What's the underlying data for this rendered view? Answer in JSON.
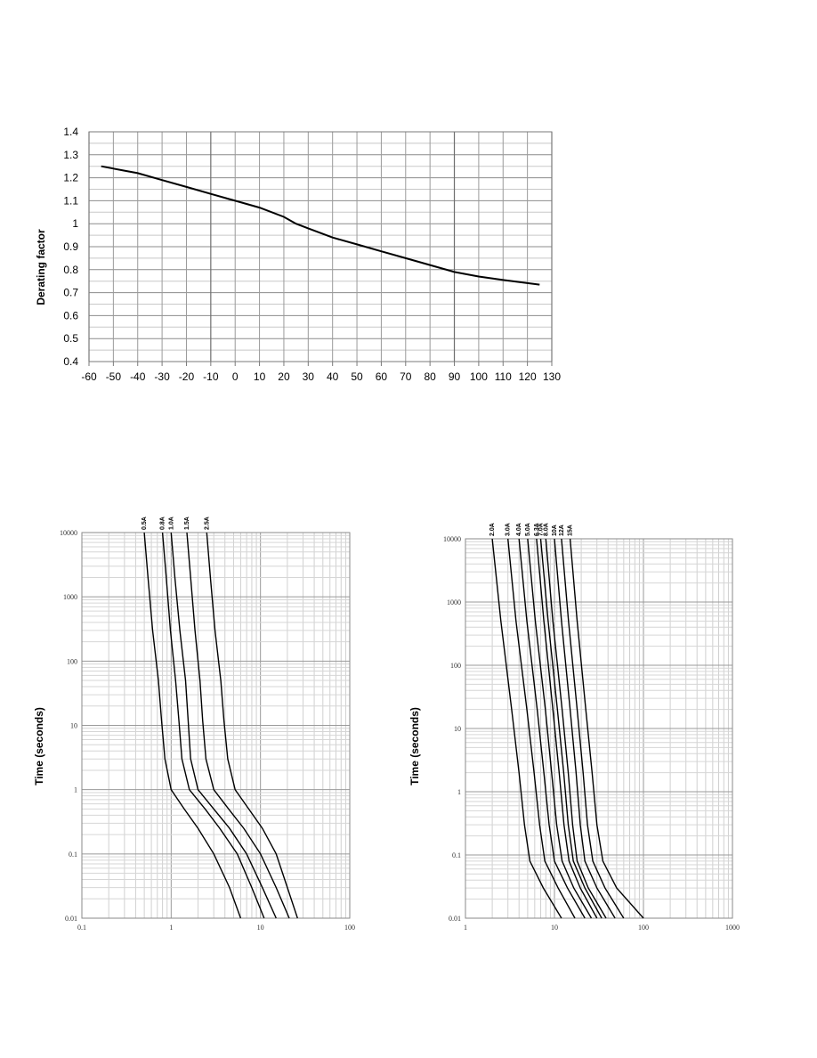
{
  "chart_data": [
    {
      "type": "line",
      "title": "",
      "xlabel": "",
      "ylabel": "Derating factor",
      "xlim": [
        -60,
        130
      ],
      "ylim": [
        0.4,
        1.4
      ],
      "x_ticks": [
        -60,
        -50,
        -40,
        -30,
        -20,
        -10,
        0,
        10,
        20,
        30,
        40,
        50,
        60,
        70,
        80,
        90,
        100,
        110,
        120,
        130
      ],
      "y_ticks": [
        0.4,
        0.5,
        0.6,
        0.7,
        0.8,
        0.9,
        1,
        1.1,
        1.2,
        1.3,
        1.4
      ],
      "x_tick_labels": [
        "-60",
        "-50",
        "-40",
        "-30",
        "-20",
        "-10",
        "0",
        "10",
        "20",
        "30",
        "40",
        "50",
        "60",
        "70",
        "80",
        "90",
        "100",
        "110",
        "120",
        "130"
      ],
      "y_tick_labels": [
        "0.4",
        "0.5",
        "0.6",
        "0.7",
        "0.8",
        "0.9",
        "1",
        "1.1",
        "1.2",
        "1.3",
        "1.4"
      ],
      "grid": true,
      "series": [
        {
          "x": [
            -55,
            -45,
            -40,
            -30,
            -20,
            -10,
            0,
            10,
            20,
            25,
            30,
            40,
            50,
            60,
            70,
            80,
            90,
            100,
            110,
            125
          ],
          "y": [
            1.25,
            1.23,
            1.22,
            1.19,
            1.16,
            1.13,
            1.1,
            1.07,
            1.03,
            1.0,
            0.98,
            0.94,
            0.91,
            0.88,
            0.85,
            0.82,
            0.79,
            0.77,
            0.755,
            0.735
          ]
        }
      ]
    },
    {
      "type": "line",
      "title": "",
      "xlabel": "",
      "ylabel": "Time (seconds)",
      "x_scale": "log",
      "y_scale": "log",
      "xlim": [
        0.1,
        100
      ],
      "ylim": [
        0.01,
        10000
      ],
      "x_tick_labels": [
        "0.1",
        "1",
        "10",
        "100"
      ],
      "y_tick_labels": [
        "0.01",
        "0.1",
        "1",
        "10",
        "100",
        "1000",
        "10000"
      ],
      "grid": true,
      "series": [
        {
          "name": "0.5A",
          "x": [
            0.5,
            0.55,
            0.62,
            0.72,
            0.78,
            0.85,
            1.0,
            1.4,
            2.0,
            3.0,
            4.5,
            6.0
          ],
          "y": [
            10000,
            2000,
            300,
            50,
            12,
            3,
            1,
            0.5,
            0.25,
            0.1,
            0.03,
            0.01
          ]
        },
        {
          "name": "0.8A",
          "x": [
            0.8,
            0.88,
            0.98,
            1.12,
            1.22,
            1.32,
            1.6,
            2.4,
            3.5,
            5.5,
            8.0,
            11.0
          ],
          "y": [
            10000,
            2000,
            300,
            50,
            12,
            3,
            1,
            0.5,
            0.25,
            0.1,
            0.03,
            0.01
          ]
        },
        {
          "name": "1.0A",
          "x": [
            1.0,
            1.1,
            1.25,
            1.45,
            1.55,
            1.65,
            2.0,
            3.0,
            4.5,
            7.0,
            10.5,
            15.0
          ],
          "y": [
            10000,
            2000,
            300,
            50,
            12,
            3,
            1,
            0.5,
            0.25,
            0.1,
            0.03,
            0.01
          ]
        },
        {
          "name": "1.5A",
          "x": [
            1.5,
            1.65,
            1.85,
            2.1,
            2.25,
            2.45,
            3.0,
            4.4,
            6.5,
            10.0,
            15.0,
            21.0
          ],
          "y": [
            10000,
            2000,
            300,
            50,
            12,
            3,
            1,
            0.5,
            0.25,
            0.1,
            0.03,
            0.01
          ]
        },
        {
          "name": "2.5A",
          "x": [
            2.5,
            2.75,
            3.1,
            3.6,
            3.9,
            4.3,
            5.2,
            7.4,
            10.5,
            15.0,
            20.0,
            26.0
          ],
          "y": [
            10000,
            2000,
            300,
            50,
            12,
            3,
            1,
            0.5,
            0.25,
            0.1,
            0.03,
            0.01
          ]
        }
      ]
    },
    {
      "type": "line",
      "title": "",
      "xlabel": "",
      "ylabel": "Time (seconds)",
      "x_scale": "log",
      "y_scale": "log",
      "xlim": [
        1,
        1000
      ],
      "ylim": [
        0.01,
        10000
      ],
      "x_tick_labels": [
        "1",
        "10",
        "100",
        "1000"
      ],
      "y_tick_labels": [
        "0.01",
        "0.1",
        "1",
        "10",
        "100",
        "1000",
        "10000"
      ],
      "grid": true,
      "series": [
        {
          "name": "2.0A",
          "x": [
            2.0,
            2.5,
            3.3,
            4.0,
            4.6,
            5.3,
            7.5,
            12.0
          ],
          "y": [
            10000,
            500,
            20,
            2,
            0.3,
            0.08,
            0.03,
            0.01
          ]
        },
        {
          "name": "3.0A",
          "x": [
            3.0,
            3.7,
            4.9,
            5.9,
            6.8,
            7.8,
            11.0,
            17.0
          ],
          "y": [
            10000,
            500,
            20,
            2,
            0.3,
            0.08,
            0.03,
            0.01
          ]
        },
        {
          "name": "4.0A",
          "x": [
            4.0,
            4.9,
            6.4,
            7.6,
            8.7,
            10.0,
            14.0,
            22.0
          ],
          "y": [
            10000,
            500,
            20,
            2,
            0.3,
            0.08,
            0.03,
            0.01
          ]
        },
        {
          "name": "5.0A",
          "x": [
            5.0,
            6.1,
            7.9,
            9.3,
            10.6,
            12.2,
            16.5,
            26.0
          ],
          "y": [
            10000,
            500,
            20,
            2,
            0.3,
            0.08,
            0.03,
            0.01
          ]
        },
        {
          "name": "6.3A",
          "x": [
            6.3,
            7.6,
            9.6,
            11.3,
            12.8,
            14.6,
            19.5,
            30.0
          ],
          "y": [
            10000,
            500,
            20,
            2,
            0.3,
            0.08,
            0.03,
            0.01
          ]
        },
        {
          "name": "7.0A",
          "x": [
            7.0,
            8.5,
            10.8,
            12.7,
            14.3,
            16.3,
            22.0,
            34.0
          ],
          "y": [
            10000,
            500,
            20,
            2,
            0.3,
            0.08,
            0.03,
            0.01
          ]
        },
        {
          "name": "8.0A",
          "x": [
            8.0,
            9.6,
            12.2,
            14.3,
            16.0,
            18.0,
            24.0,
            38.0
          ],
          "y": [
            10000,
            500,
            20,
            2,
            0.3,
            0.08,
            0.03,
            0.01
          ]
        },
        {
          "name": "10A",
          "x": [
            10.0,
            12.0,
            15.0,
            17.5,
            19.5,
            22.0,
            30.0,
            48.0
          ],
          "y": [
            10000,
            500,
            20,
            2,
            0.3,
            0.08,
            0.03,
            0.01
          ]
        },
        {
          "name": "12A",
          "x": [
            12.0,
            14.4,
            18.0,
            21.0,
            23.5,
            27.0,
            37.0,
            60.0
          ],
          "y": [
            10000,
            500,
            20,
            2,
            0.3,
            0.08,
            0.03,
            0.01
          ]
        },
        {
          "name": "15A",
          "x": [
            15.0,
            18.0,
            22.5,
            26.5,
            30.0,
            35.0,
            50.0,
            100.0
          ],
          "y": [
            10000,
            500,
            20,
            2,
            0.3,
            0.08,
            0.03,
            0.01
          ]
        }
      ]
    }
  ]
}
